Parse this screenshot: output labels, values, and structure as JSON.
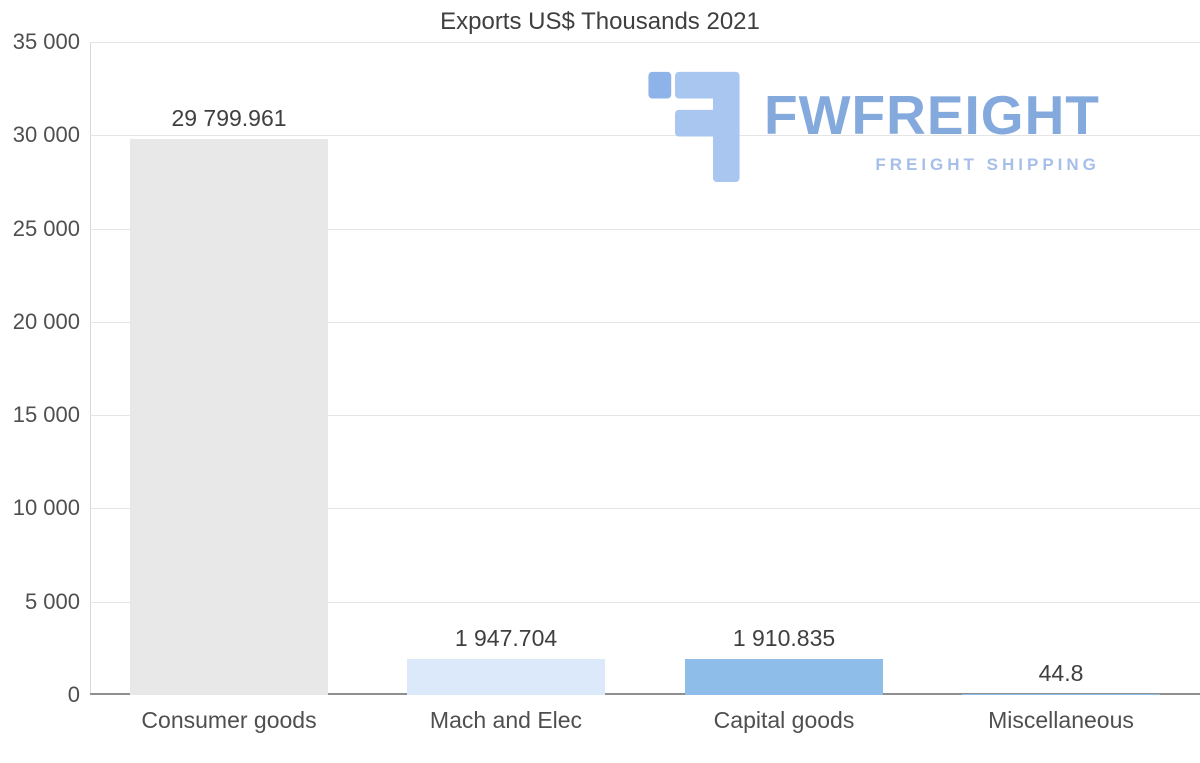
{
  "chart_data": {
    "type": "bar",
    "title": "Exports US$ Thousands 2021",
    "categories": [
      "Consumer goods",
      "Mach and Elec",
      "Capital goods",
      "Miscellaneous"
    ],
    "values": [
      29799.961,
      1947.704,
      1910.835,
      44.8
    ],
    "value_labels": [
      "29 799.961",
      "1 947.704",
      "1 910.835",
      "44.8"
    ],
    "bar_colors": [
      "#e8e8e8",
      "#dbe9fb",
      "#8fbde9",
      "#8fbde9"
    ],
    "ylim": [
      0,
      35000
    ],
    "ytick_step": 5000,
    "ytick_labels": [
      "0",
      "5 000",
      "10 000",
      "15 000",
      "20 000",
      "25 000",
      "30 000",
      "35 000"
    ],
    "grid": true,
    "legend": "none",
    "gridline_color": "#e5e5e5",
    "zero_line_color": "#8f8f8f",
    "text_color": "#4f4f4f"
  },
  "watermark": {
    "brand": "FWFREIGHT",
    "tagline": "FREIGHT SHIPPING",
    "icon": "fw-logo-icon",
    "brand_color": "#84a9dc",
    "tagline_color": "#a6bfe9",
    "icon_color": "#a9c6f1",
    "icon_accent_color": "#8db3e8"
  }
}
